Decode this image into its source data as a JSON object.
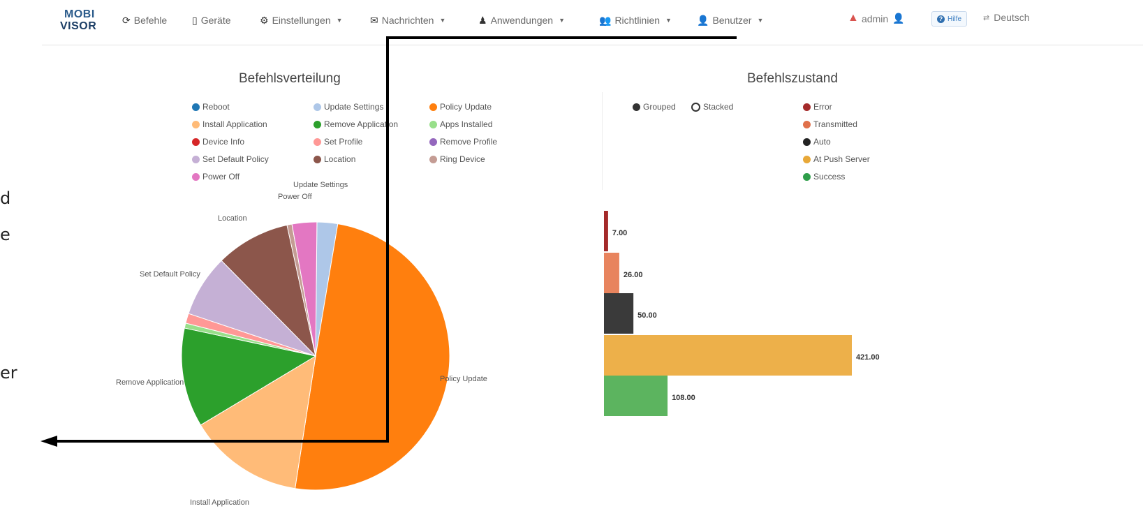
{
  "nav": {
    "logo_line1": "MOBI",
    "logo_line2": "VISOR",
    "items": [
      {
        "label": "Befehle",
        "icon": "refresh-icon",
        "dropdown": false
      },
      {
        "label": "Geräte",
        "icon": "phone-icon",
        "dropdown": false
      },
      {
        "label": "Einstellungen",
        "icon": "gear-icon",
        "dropdown": true
      },
      {
        "label": "Nachrichten",
        "icon": "envelope-icon",
        "dropdown": true
      },
      {
        "label": "Anwendungen",
        "icon": "user-tie-icon",
        "dropdown": true
      },
      {
        "label": "Richtlinien",
        "icon": "users-icon",
        "dropdown": true
      },
      {
        "label": "Benutzer",
        "icon": "user-icon",
        "dropdown": true
      }
    ],
    "user": "admin",
    "help": "Hilfe",
    "language": "Deutsch"
  },
  "left_panel": {
    "title": "Befehlsverteilung",
    "legend": [
      {
        "label": "Reboot",
        "color": "#1f77b4"
      },
      {
        "label": "Update Settings",
        "color": "#aec7e8"
      },
      {
        "label": "Policy Update",
        "color": "#ff7f0e"
      },
      {
        "label": "Install Application",
        "color": "#ffbb78"
      },
      {
        "label": "Remove Application",
        "color": "#2ca02c"
      },
      {
        "label": "Apps Installed",
        "color": "#98df8a"
      },
      {
        "label": "Device Info",
        "color": "#d62728"
      },
      {
        "label": "Set Profile",
        "color": "#ff9896"
      },
      {
        "label": "Remove Profile",
        "color": "#9467bd"
      },
      {
        "label": "Set Default Policy",
        "color": "#c5b0d5"
      },
      {
        "label": "Location",
        "color": "#8c564b"
      },
      {
        "label": "Ring Device",
        "color": "#c49c94"
      },
      {
        "label": "Power Off",
        "color": "#e377c2"
      }
    ],
    "slice_labels": {
      "update_settings": "Update Settings",
      "power_off": "Power Off",
      "location": "Location",
      "set_default_policy": "Set Default Policy",
      "remove_application": "Remove Application",
      "policy_update": "Policy Update",
      "install_application": "Install Application"
    }
  },
  "right_panel": {
    "title": "Befehlszustand",
    "toggle": {
      "grouped": "Grouped",
      "stacked": "Stacked",
      "selected": "Grouped"
    },
    "legend": [
      {
        "label": "Error",
        "color": "#a42a2a"
      },
      {
        "label": "Transmitted",
        "color": "#e0704a"
      },
      {
        "label": "Auto",
        "color": "#222222"
      },
      {
        "label": "At Push Server",
        "color": "#e8a838"
      },
      {
        "label": "Success",
        "color": "#2e9e4a"
      }
    ]
  },
  "chart_data": [
    {
      "type": "pie",
      "title": "Befehlsverteilung",
      "categories": [
        "Update Settings",
        "Policy Update",
        "Install Application",
        "Remove Application",
        "Apps Installed",
        "Set Profile",
        "Set Default Policy",
        "Location",
        "Ring Device",
        "Power Off"
      ],
      "values": [
        2.5,
        50,
        14,
        12,
        0.6,
        1.2,
        7.5,
        9,
        0.6,
        3
      ],
      "colors": [
        "#aec7e8",
        "#ff7f0e",
        "#ffbb78",
        "#2ca02c",
        "#98df8a",
        "#ff9896",
        "#c5b0d5",
        "#8c564b",
        "#c49c94",
        "#e377c2"
      ]
    },
    {
      "type": "bar",
      "orientation": "horizontal",
      "title": "Befehlszustand",
      "categories": [
        "Error",
        "Transmitted",
        "Auto",
        "At Push Server",
        "Success"
      ],
      "values": [
        7,
        26,
        50,
        421,
        108
      ],
      "value_labels": [
        "7.00",
        "26.00",
        "50.00",
        "421.00",
        "108.00"
      ],
      "colors": [
        "#a42a2a",
        "#e8845e",
        "#3a3a3a",
        "#edb04a",
        "#5cb45f"
      ],
      "xlim": [
        0,
        421
      ]
    }
  ],
  "edge_fragments": [
    "d",
    "e",
    "er"
  ]
}
